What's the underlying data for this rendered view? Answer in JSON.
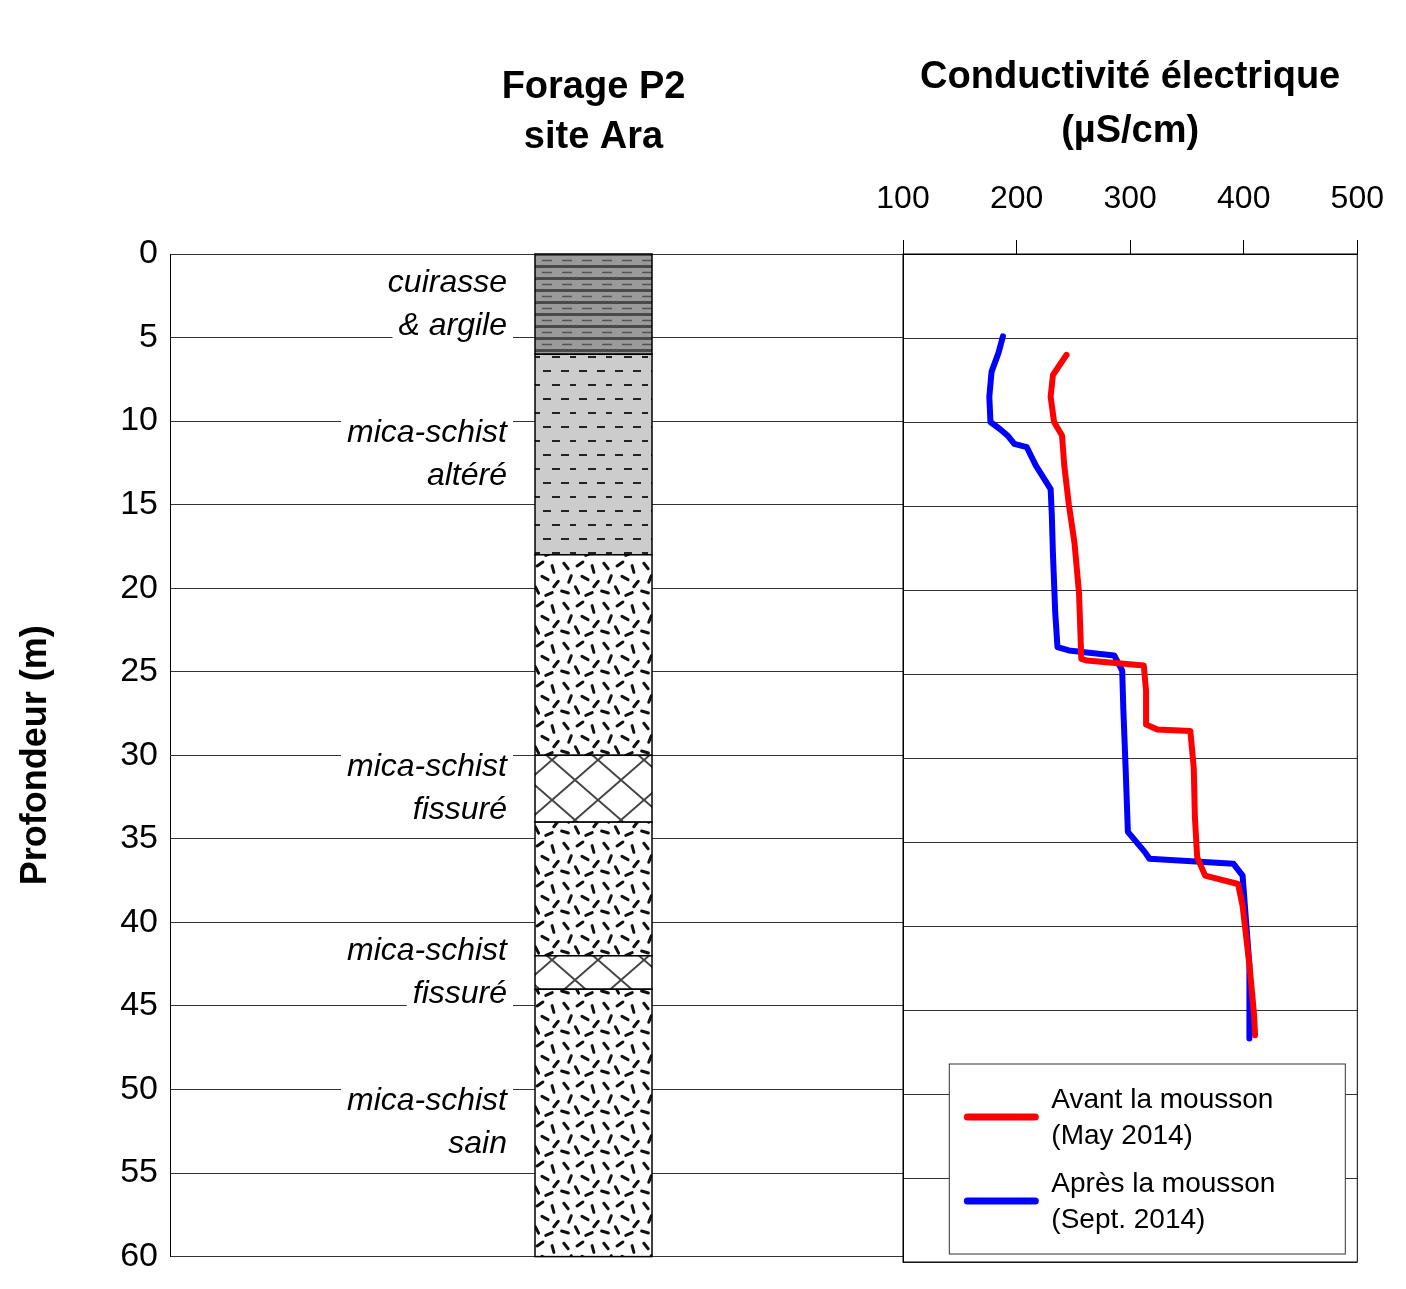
{
  "chart_data": [
    {
      "type": "lithology",
      "title": [
        "Forage P2",
        "site Ara"
      ],
      "y_label": "Profondeur (m)",
      "ylim": [
        0,
        60
      ],
      "yticks": [
        0,
        5,
        10,
        15,
        20,
        25,
        30,
        35,
        40,
        45,
        50,
        55,
        60
      ],
      "grid": true,
      "tick_labels": "y",
      "layers": [
        {
          "top": 0,
          "bottom": 6,
          "label": [
            "cuirasse",
            "& argile"
          ],
          "marker": "hatch",
          "color": "#9a9a9a"
        },
        {
          "top": 6,
          "bottom": 18,
          "label": [
            "mica-schist",
            "altéré"
          ],
          "marker": "dash",
          "color": "#cccccc"
        },
        {
          "top": 18,
          "bottom": 30,
          "marker": "dots",
          "color": "#ffffff"
        },
        {
          "top": 30,
          "bottom": 34,
          "label": [
            "mica-schist",
            "fissuré"
          ],
          "marker": "cross",
          "color": "#ffffff"
        },
        {
          "top": 34,
          "bottom": 42,
          "marker": "dots",
          "color": "#ffffff"
        },
        {
          "top": 42,
          "bottom": 44,
          "label": [
            "mica-schist",
            "fissuré"
          ],
          "marker": "cross",
          "color": "#ffffff"
        },
        {
          "top": 44,
          "bottom": 60,
          "label": [
            "mica-schist",
            "sain"
          ],
          "marker": "dots",
          "color": "#ffffff"
        }
      ]
    },
    {
      "type": "line",
      "title": [
        "Conductivité électrique",
        "(µS/cm)"
      ],
      "xlim": [
        100,
        500
      ],
      "xticks": [
        100,
        200,
        300,
        400,
        500
      ],
      "ylim": [
        0,
        60
      ],
      "yticks": [
        0,
        5,
        10,
        15,
        20,
        25,
        30,
        35,
        40,
        45,
        50,
        55,
        60
      ],
      "grid": true,
      "tick_labels": "x",
      "legend": "lower right",
      "series": [
        {
          "name": "Avant la mousson (May 2014)",
          "color": "#ff0000",
          "x": [
            244,
            232,
            230,
            233,
            240,
            242,
            246,
            251,
            255,
            257,
            262,
            312,
            314,
            314,
            324,
            353,
            356,
            357,
            359,
            366,
            395,
            399,
            405,
            409,
            410
          ],
          "values": [
            6.0,
            7.2,
            8.5,
            10.0,
            10.8,
            12.6,
            14.9,
            17.2,
            20.2,
            24.1,
            24.2,
            24.5,
            26.0,
            28.0,
            28.3,
            28.4,
            30.6,
            33.5,
            35.9,
            37.0,
            37.5,
            38.8,
            42.3,
            45.2,
            46.5
          ]
        },
        {
          "name": "Après la mousson (Sept. 2014)",
          "color": "#0000ff",
          "x": [
            188,
            184,
            178,
            176,
            177,
            185,
            192,
            198,
            209,
            217,
            230,
            231,
            232,
            234,
            236,
            246,
            286,
            293,
            294,
            296,
            298,
            313,
            317,
            391,
            399,
            401,
            405,
            405,
            405
          ],
          "values": [
            4.9,
            5.9,
            7.0,
            8.5,
            10.0,
            10.4,
            10.8,
            11.3,
            11.5,
            12.6,
            14.0,
            15.5,
            17.8,
            21.3,
            23.4,
            23.6,
            23.9,
            24.8,
            27.1,
            30.6,
            34.4,
            35.6,
            36.0,
            36.3,
            37.0,
            38.8,
            42.3,
            45.8,
            46.7
          ]
        }
      ]
    }
  ]
}
